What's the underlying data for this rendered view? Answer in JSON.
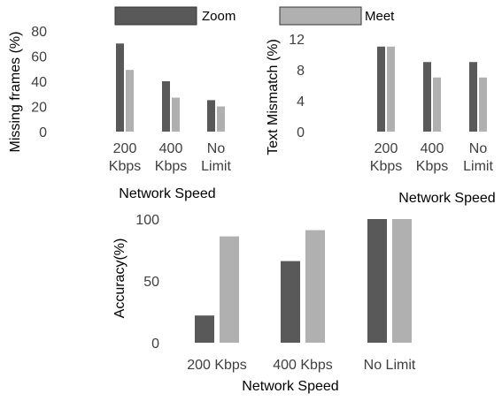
{
  "colors": {
    "zoom": "#595959",
    "meet": "#b0b0b0",
    "axis": "#404040"
  },
  "legend": [
    {
      "name": "Zoom",
      "color": "#595959"
    },
    {
      "name": "Meet",
      "color": "#b0b0b0"
    }
  ],
  "chart_data": [
    {
      "type": "bar",
      "categories": [
        [
          "200",
          "Kbps"
        ],
        [
          "400",
          "Kbps"
        ],
        [
          "No",
          "Limit"
        ]
      ],
      "series": [
        {
          "name": "Zoom",
          "values": [
            70,
            40,
            25
          ]
        },
        {
          "name": "Meet",
          "values": [
            49,
            27,
            20
          ]
        }
      ],
      "yticks": [
        0,
        20,
        40,
        60,
        80
      ],
      "ylim": [
        0,
        80
      ],
      "xlabel": "Network Speed",
      "ylabel": "Missing frames (%)"
    },
    {
      "type": "bar",
      "categories": [
        [
          "200",
          "Kbps"
        ],
        [
          "400",
          "Kbps"
        ],
        [
          "No",
          "Limit"
        ]
      ],
      "series": [
        {
          "name": "Zoom",
          "values": [
            11,
            9,
            9
          ]
        },
        {
          "name": "Meet",
          "values": [
            11,
            7,
            7
          ]
        }
      ],
      "yticks": [
        0,
        4,
        8,
        12
      ],
      "ylim": [
        0,
        12
      ],
      "xlabel": "Network Speed",
      "ylabel": "Text Mismatch (%)"
    },
    {
      "type": "bar",
      "categories": [
        [
          "200 Kbps"
        ],
        [
          "400 Kbps"
        ],
        [
          "No Limit"
        ]
      ],
      "series": [
        {
          "name": "Zoom",
          "values": [
            22,
            66,
            100
          ]
        },
        {
          "name": "Meet",
          "values": [
            86,
            91,
            100
          ]
        }
      ],
      "yticks": [
        0,
        50,
        100
      ],
      "ylim": [
        0,
        100
      ],
      "xlabel": "Network Speed",
      "ylabel": "Accuracy(%)"
    }
  ]
}
